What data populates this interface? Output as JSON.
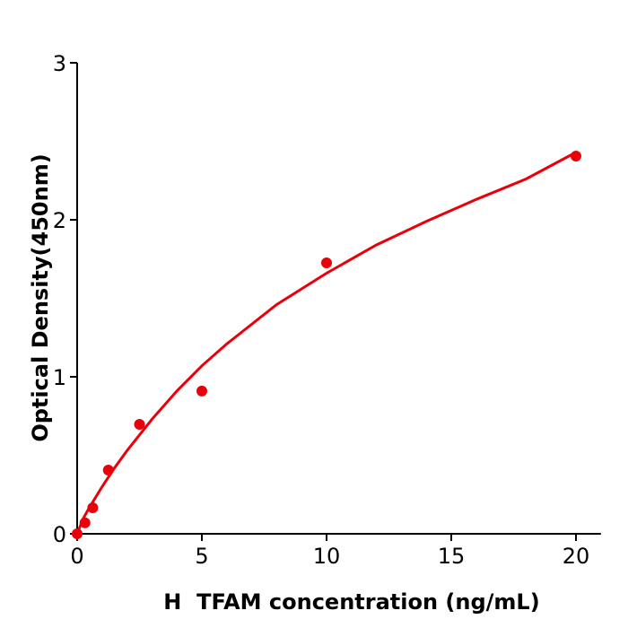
{
  "chart_data": {
    "type": "scatter",
    "title": "",
    "xlabel": "H  TFAM concentration (ng/mL)",
    "ylabel": "Optical Density(450nm)",
    "xlim": [
      0,
      21
    ],
    "ylim": [
      0,
      3
    ],
    "xticks": [
      0,
      5,
      10,
      15,
      20
    ],
    "yticks": [
      0,
      1,
      2,
      3
    ],
    "grid": false,
    "color": "#e8000b",
    "points": {
      "x": [
        0,
        0.3125,
        0.625,
        1.25,
        2.5,
        5,
        10,
        20
      ],
      "y": [
        0.0,
        0.07,
        0.166,
        0.406,
        0.697,
        0.909,
        1.726,
        2.406
      ]
    },
    "fit_curve": {
      "x": [
        0,
        0.25,
        0.5,
        1,
        1.5,
        2,
        3,
        4,
        5,
        6,
        8,
        10,
        12,
        14,
        16,
        18,
        20
      ],
      "y": [
        0,
        0.1,
        0.17,
        0.3,
        0.42,
        0.53,
        0.73,
        0.91,
        1.07,
        1.21,
        1.46,
        1.66,
        1.84,
        1.99,
        2.13,
        2.26,
        2.43
      ]
    }
  }
}
